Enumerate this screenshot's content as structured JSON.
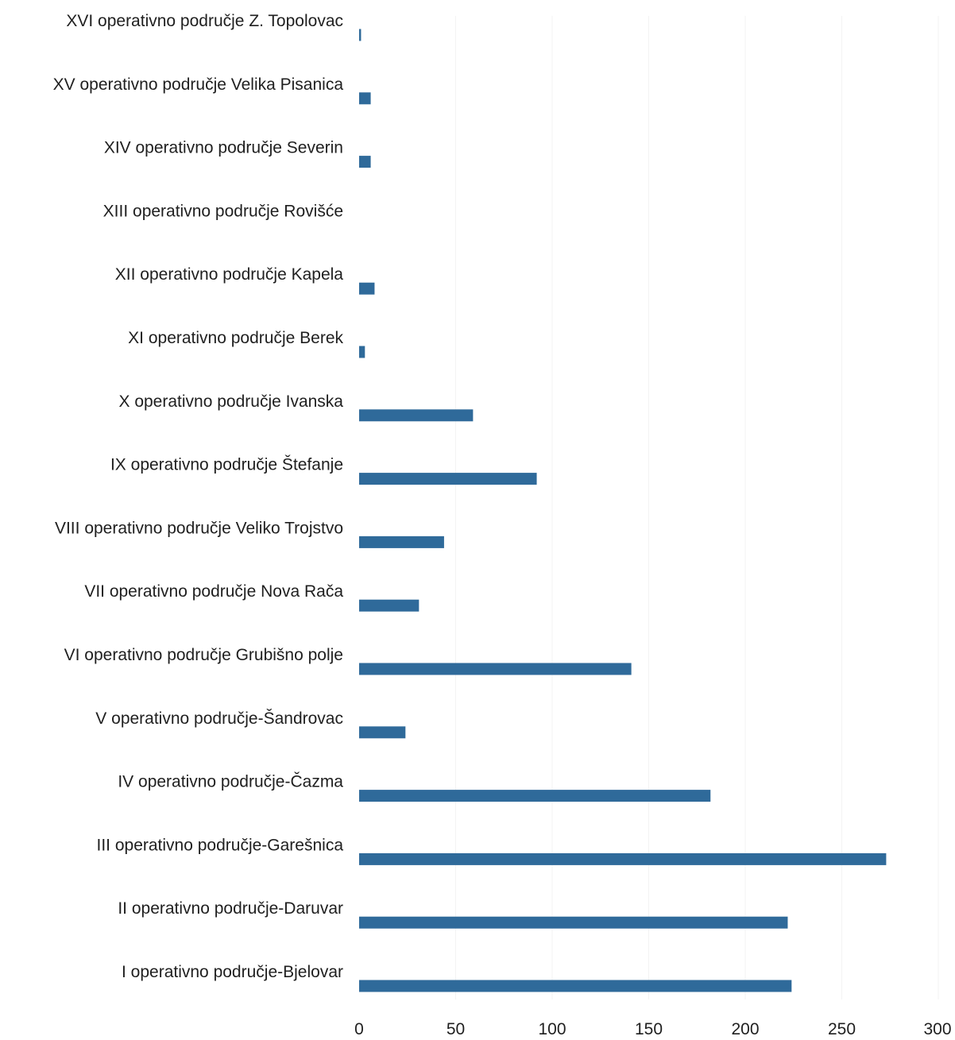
{
  "chart_data": {
    "type": "bar",
    "orientation": "horizontal",
    "title": "",
    "xlabel": "",
    "ylabel": "",
    "xlim": [
      0,
      300
    ],
    "x_ticks": [
      "0",
      "50",
      "100",
      "150",
      "200",
      "250",
      "300"
    ],
    "grid": false,
    "bar_color": "#2f6a9a",
    "categories": [
      "XVI operativno područje Z. Topolovac",
      "XV operativno područje Velika Pisanica",
      "XIV operativno područje Severin",
      "XIII operativno područje Rovišće",
      "XII operativno područje Kapela",
      "XI operativno područje Berek",
      "X operativno područje Ivanska",
      "IX operativno područje Štefanje",
      "VIII operativno područje Veliko Trojstvo",
      "VII operativno područje Nova Rača",
      "VI operativno područje Grubišno polje",
      "V operativno područje-Šandrovac",
      "IV operativno područje-Čazma",
      "III operativno područje-Garešnica",
      "II operativno područje-Daruvar",
      "I operativno područje-Bjelovar"
    ],
    "values": [
      1,
      6,
      6,
      0,
      8,
      3,
      59,
      92,
      44,
      31,
      141,
      24,
      182,
      273,
      222,
      224
    ]
  }
}
